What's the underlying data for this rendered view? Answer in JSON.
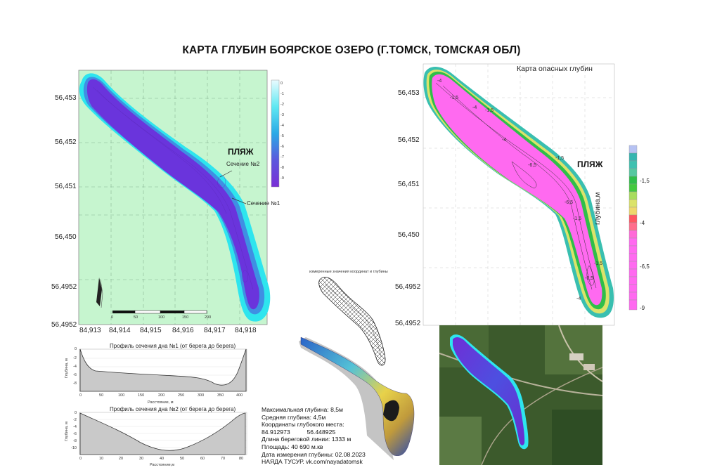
{
  "title": "КАРТА ГЛУБИН БОЯРСКОЕ ОЗЕРО (Г.ТОМСК, ТОМСКАЯ ОБЛ)",
  "colors": {
    "land_map1": "#c6f5cf",
    "depth_deep": "#6a34dc",
    "depth_shallow": "#2ee5ee",
    "danger_pink": "#ff6af0",
    "danger_green": "#2fbe4a",
    "danger_teal": "#39bfb0",
    "danger_yellow": "#dbe36a"
  },
  "map1": {
    "lat_labels": [
      "56,453",
      "56,452",
      "56,451",
      "56,450",
      "56,4952",
      "56,4952"
    ],
    "lon_labels": [
      "84,913",
      "84,914",
      "84,915",
      "84,916",
      "84,917",
      "84,918"
    ],
    "beach_label": "ПЛЯЖ",
    "section2_label": "Сечение №2",
    "section1_label": "Сечение №1",
    "legend_values": [
      "0",
      "-1",
      "-2",
      "-3",
      "-4",
      "-5",
      "-6",
      "-7",
      "-8",
      "-9"
    ],
    "scale_labels": [
      "0",
      "50",
      "100",
      "150",
      "200"
    ]
  },
  "map2": {
    "title": "Карта опасных глубин",
    "lat_labels": [
      "56,453",
      "56,452",
      "56,451",
      "56,450",
      "56,4952",
      "56,4952"
    ],
    "beach_label": "ПЛЯЖ",
    "legend_values": [
      "-1,5",
      "-4",
      "-6,5",
      "-9"
    ],
    "legend_axis_label": "глубина,м",
    "contour_labels": [
      "-1,5",
      "-4",
      "-6,5"
    ]
  },
  "profile1": {
    "title": "Профиль сечения дна №1 (от берега до берега)",
    "ylabel": "Глубина, м",
    "xlabel": "Расстояние, м",
    "y_ticks": [
      "0",
      "-2",
      "-4",
      "-6",
      "-8"
    ],
    "x_ticks": [
      "0",
      "50",
      "100",
      "150",
      "200",
      "250",
      "300",
      "350",
      "400"
    ]
  },
  "profile2": {
    "title": "Профиль сечения дна №2 (от берега до берега)",
    "ylabel": "Глубина, м",
    "xlabel": "Расстояние,м",
    "y_ticks": [
      "0",
      "-2",
      "-4",
      "-6",
      "-8",
      "-10"
    ],
    "x_ticks": [
      "0",
      "10",
      "20",
      "30",
      "40",
      "50",
      "60",
      "70",
      "80"
    ]
  },
  "wireframe_label": "измеренные значения координат и глубины",
  "info": {
    "max_depth": "Максимальная глубина: 8,5м",
    "avg_depth": "Средняя глубина: 4,5м",
    "coords_title": "Координаты глубокого места:",
    "coords_value": "84.912973          56.448925",
    "shoreline": "Длина береговой линии: 1333 м",
    "area": "Площадь: 40 690 м.кв",
    "date": "Дата измерения глубины: 02.08.2023",
    "org": "НАЯДА ТУСУР. vk.com/nayadatomsk"
  }
}
